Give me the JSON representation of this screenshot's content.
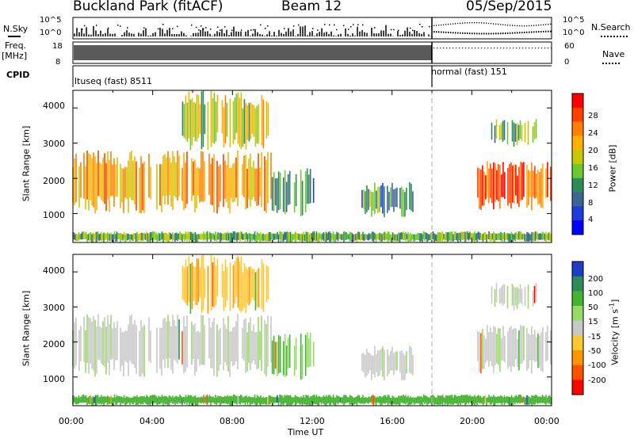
{
  "header": {
    "title": "Buckland Park (fitACF)",
    "beam": "Beam 12",
    "date": "05/Sep/2015"
  },
  "top_panels": {
    "nsky_label": "N.Sky",
    "nsearch_label": "N.Search",
    "noise_ticks": [
      "10^5",
      "10^0"
    ],
    "noise_ticks_right": [
      "10^5",
      "10^0"
    ],
    "freq_label_1": "Freq.",
    "freq_label_2": "[MHz]",
    "freq_ticks": [
      "18",
      "8"
    ],
    "nave_ticks": [
      "60",
      "0"
    ],
    "nave_label": "Nave",
    "cpid_label": "CPID",
    "cpid_left": "ltuseq (fast) 8511",
    "cpid_right": "normal (fast) 151"
  },
  "axes": {
    "ylabel": "Slant Range [km]",
    "xlabel": "Time UT",
    "y_ticks": [
      "4000",
      "3000",
      "2000",
      "1000"
    ],
    "x_ticks": [
      "00:00",
      "04:00",
      "08:00",
      "12:00",
      "16:00",
      "20:00",
      "00:00"
    ]
  },
  "colorbars": {
    "power": {
      "label": "Power [dB]",
      "ticks": [
        "28",
        "24",
        "20",
        "16",
        "12",
        "8",
        "4"
      ],
      "colors": [
        "#ff0000",
        "#ff4000",
        "#ff8000",
        "#ffb000",
        "#c8c800",
        "#6ec832",
        "#2e8b57",
        "#3c6496",
        "#1e3cdc",
        "#0000ff"
      ]
    },
    "velocity": {
      "label": "Velocity [m s",
      "label_sup": "-1",
      "label_end": "]",
      "ticks": [
        "200",
        "100",
        "50",
        "15",
        "-15",
        "-50",
        "-100",
        "-200"
      ],
      "colors": [
        "#1e3cc8",
        "#2e8b57",
        "#46b432",
        "#96dc64",
        "#c8c8c8",
        "#ffc832",
        "#ff9600",
        "#ff5000",
        "#ff0000"
      ]
    }
  },
  "chart_data": {
    "type": "heatmap",
    "x_range_hours": [
      0,
      24
    ],
    "y_range_km": [
      180,
      4500
    ],
    "mode_change_hour": 18.0,
    "panels": [
      "power",
      "velocity"
    ],
    "scatter_regions": [
      {
        "t": [
          0.0,
          10.0
        ],
        "r": [
          1000,
          2800
        ],
        "power_db": 22,
        "velocity": 0
      },
      {
        "t": [
          5.5,
          9.8
        ],
        "r": [
          2800,
          4500
        ],
        "power_db": 18,
        "velocity": -40
      },
      {
        "t": [
          10.0,
          12.1
        ],
        "r": [
          900,
          2300
        ],
        "power_db": 12,
        "velocity": 30
      },
      {
        "t": [
          14.5,
          17.1
        ],
        "r": [
          900,
          1900
        ],
        "power_db": 12,
        "velocity": 0
      },
      {
        "t": [
          20.3,
          24.0
        ],
        "r": [
          1100,
          2500
        ],
        "power_db": 26,
        "velocity": 0
      },
      {
        "t": [
          21.0,
          23.3
        ],
        "r": [
          2900,
          3700
        ],
        "power_db": 14,
        "velocity": 0
      },
      {
        "t": [
          0.0,
          24.0
        ],
        "r": [
          180,
          500
        ],
        "power_db": 14,
        "velocity": 40
      }
    ]
  }
}
